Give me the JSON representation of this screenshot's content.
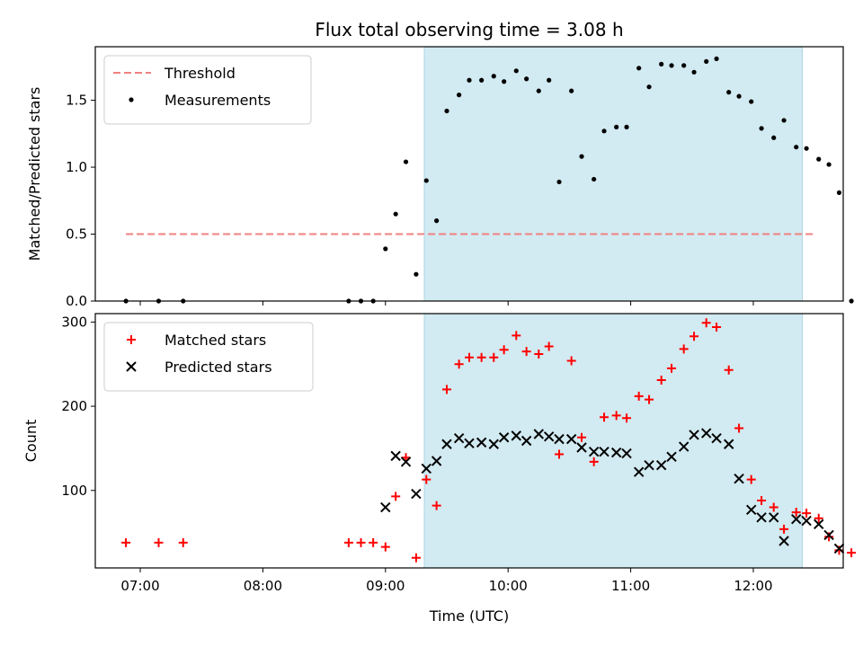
{
  "chart_data": {
    "title": "Flux total observing time = 3.08 h",
    "xlabel": "Time (UTC)",
    "x_tick_labels": [
      "07:00",
      "08:00",
      "09:00",
      "10:00",
      "11:00",
      "12:00"
    ],
    "shaded_interval": [
      "09:19",
      "12:24"
    ],
    "colors": {
      "threshold": "#f08080",
      "shade": "#add8e6",
      "matched": "#ff0000",
      "predicted": "#000000",
      "measurement": "#000000"
    },
    "panels": [
      {
        "type": "scatter",
        "ylabel": "Matched/Predicted stars",
        "ylim": [
          0,
          1.9
        ],
        "y_ticks": [
          "0.0",
          "0.5",
          "1.0",
          "1.5"
        ],
        "legend": "top-left",
        "threshold": {
          "name": "Threshold",
          "value": 0.5,
          "x_range": [
            "06:53",
            "12:30"
          ]
        },
        "series": [
          {
            "name": "Measurements",
            "marker": "dot",
            "points": [
              [
                "06:53",
                0.0
              ],
              [
                "07:09",
                0.0
              ],
              [
                "07:21",
                0.0
              ],
              [
                "08:42",
                0.0
              ],
              [
                "08:48",
                0.0
              ],
              [
                "08:54",
                0.0
              ],
              [
                "09:00",
                0.39
              ],
              [
                "09:05",
                0.65
              ],
              [
                "09:10",
                1.04
              ],
              [
                "09:15",
                0.2
              ],
              [
                "09:20",
                0.9
              ],
              [
                "09:25",
                0.6
              ],
              [
                "09:30",
                1.42
              ],
              [
                "09:36",
                1.54
              ],
              [
                "09:41",
                1.65
              ],
              [
                "09:47",
                1.65
              ],
              [
                "09:53",
                1.68
              ],
              [
                "09:58",
                1.64
              ],
              [
                "10:04",
                1.72
              ],
              [
                "10:09",
                1.66
              ],
              [
                "10:15",
                1.57
              ],
              [
                "10:20",
                1.65
              ],
              [
                "10:25",
                0.89
              ],
              [
                "10:31",
                1.57
              ],
              [
                "10:36",
                1.08
              ],
              [
                "10:42",
                0.91
              ],
              [
                "10:47",
                1.27
              ],
              [
                "10:53",
                1.3
              ],
              [
                "10:58",
                1.3
              ],
              [
                "11:04",
                1.74
              ],
              [
                "11:09",
                1.6
              ],
              [
                "11:15",
                1.77
              ],
              [
                "11:20",
                1.76
              ],
              [
                "11:26",
                1.76
              ],
              [
                "11:31",
                1.71
              ],
              [
                "11:37",
                1.79
              ],
              [
                "11:42",
                1.81
              ],
              [
                "11:48",
                1.56
              ],
              [
                "11:53",
                1.53
              ],
              [
                "11:59",
                1.49
              ],
              [
                "12:04",
                1.29
              ],
              [
                "12:10",
                1.22
              ],
              [
                "12:15",
                1.35
              ],
              [
                "12:21",
                1.15
              ],
              [
                "12:26",
                1.14
              ],
              [
                "12:32",
                1.06
              ],
              [
                "12:37",
                1.02
              ],
              [
                "12:42",
                0.81
              ],
              [
                "12:48",
                0.0
              ]
            ]
          }
        ]
      },
      {
        "type": "scatter",
        "ylabel": "Count",
        "ylim": [
          8,
          310
        ],
        "y_ticks": [
          "100",
          "200",
          "300"
        ],
        "legend": "top-left",
        "series": [
          {
            "name": "Matched stars",
            "marker": "plus",
            "points": [
              [
                "06:53",
                38
              ],
              [
                "07:09",
                38
              ],
              [
                "07:21",
                38
              ],
              [
                "08:42",
                38
              ],
              [
                "08:48",
                38
              ],
              [
                "08:54",
                38
              ],
              [
                "09:00",
                33
              ],
              [
                "09:05",
                93
              ],
              [
                "09:10",
                139
              ],
              [
                "09:15",
                20
              ],
              [
                "09:20",
                113
              ],
              [
                "09:25",
                82
              ],
              [
                "09:30",
                220
              ],
              [
                "09:36",
                250
              ],
              [
                "09:41",
                258
              ],
              [
                "09:47",
                258
              ],
              [
                "09:53",
                258
              ],
              [
                "09:58",
                267
              ],
              [
                "10:04",
                284
              ],
              [
                "10:09",
                265
              ],
              [
                "10:15",
                262
              ],
              [
                "10:20",
                271
              ],
              [
                "10:25",
                143
              ],
              [
                "10:31",
                254
              ],
              [
                "10:36",
                163
              ],
              [
                "10:42",
                134
              ],
              [
                "10:47",
                187
              ],
              [
                "10:53",
                189
              ],
              [
                "10:58",
                186
              ],
              [
                "11:04",
                212
              ],
              [
                "11:09",
                208
              ],
              [
                "11:15",
                231
              ],
              [
                "11:20",
                245
              ],
              [
                "11:26",
                268
              ],
              [
                "11:31",
                283
              ],
              [
                "11:37",
                299
              ],
              [
                "11:42",
                294
              ],
              [
                "11:48",
                243
              ],
              [
                "11:53",
                174
              ],
              [
                "11:59",
                113
              ],
              [
                "12:04",
                88
              ],
              [
                "12:10",
                80
              ],
              [
                "12:15",
                54
              ],
              [
                "12:21",
                74
              ],
              [
                "12:26",
                73
              ],
              [
                "12:32",
                67
              ],
              [
                "12:37",
                45
              ],
              [
                "12:42",
                29
              ],
              [
                "12:48",
                26
              ]
            ]
          },
          {
            "name": "Predicted stars",
            "marker": "x",
            "points": [
              [
                "09:00",
                80
              ],
              [
                "09:05",
                141
              ],
              [
                "09:10",
                134
              ],
              [
                "09:15",
                96
              ],
              [
                "09:20",
                126
              ],
              [
                "09:25",
                135
              ],
              [
                "09:30",
                155
              ],
              [
                "09:36",
                162
              ],
              [
                "09:41",
                156
              ],
              [
                "09:47",
                157
              ],
              [
                "09:53",
                155
              ],
              [
                "09:58",
                163
              ],
              [
                "10:04",
                165
              ],
              [
                "10:09",
                159
              ],
              [
                "10:15",
                167
              ],
              [
                "10:20",
                164
              ],
              [
                "10:25",
                161
              ],
              [
                "10:31",
                161
              ],
              [
                "10:36",
                151
              ],
              [
                "10:42",
                146
              ],
              [
                "10:47",
                146
              ],
              [
                "10:53",
                145
              ],
              [
                "10:58",
                144
              ],
              [
                "11:04",
                122
              ],
              [
                "11:09",
                130
              ],
              [
                "11:15",
                130
              ],
              [
                "11:20",
                140
              ],
              [
                "11:26",
                152
              ],
              [
                "11:31",
                166
              ],
              [
                "11:37",
                168
              ],
              [
                "11:42",
                162
              ],
              [
                "11:48",
                155
              ],
              [
                "11:53",
                114
              ],
              [
                "11:59",
                77
              ],
              [
                "12:04",
                68
              ],
              [
                "12:10",
                68
              ],
              [
                "12:15",
                40
              ],
              [
                "12:21",
                66
              ],
              [
                "12:26",
                64
              ],
              [
                "12:32",
                60
              ],
              [
                "12:37",
                47
              ],
              [
                "12:42",
                31
              ]
            ]
          }
        ]
      }
    ]
  }
}
